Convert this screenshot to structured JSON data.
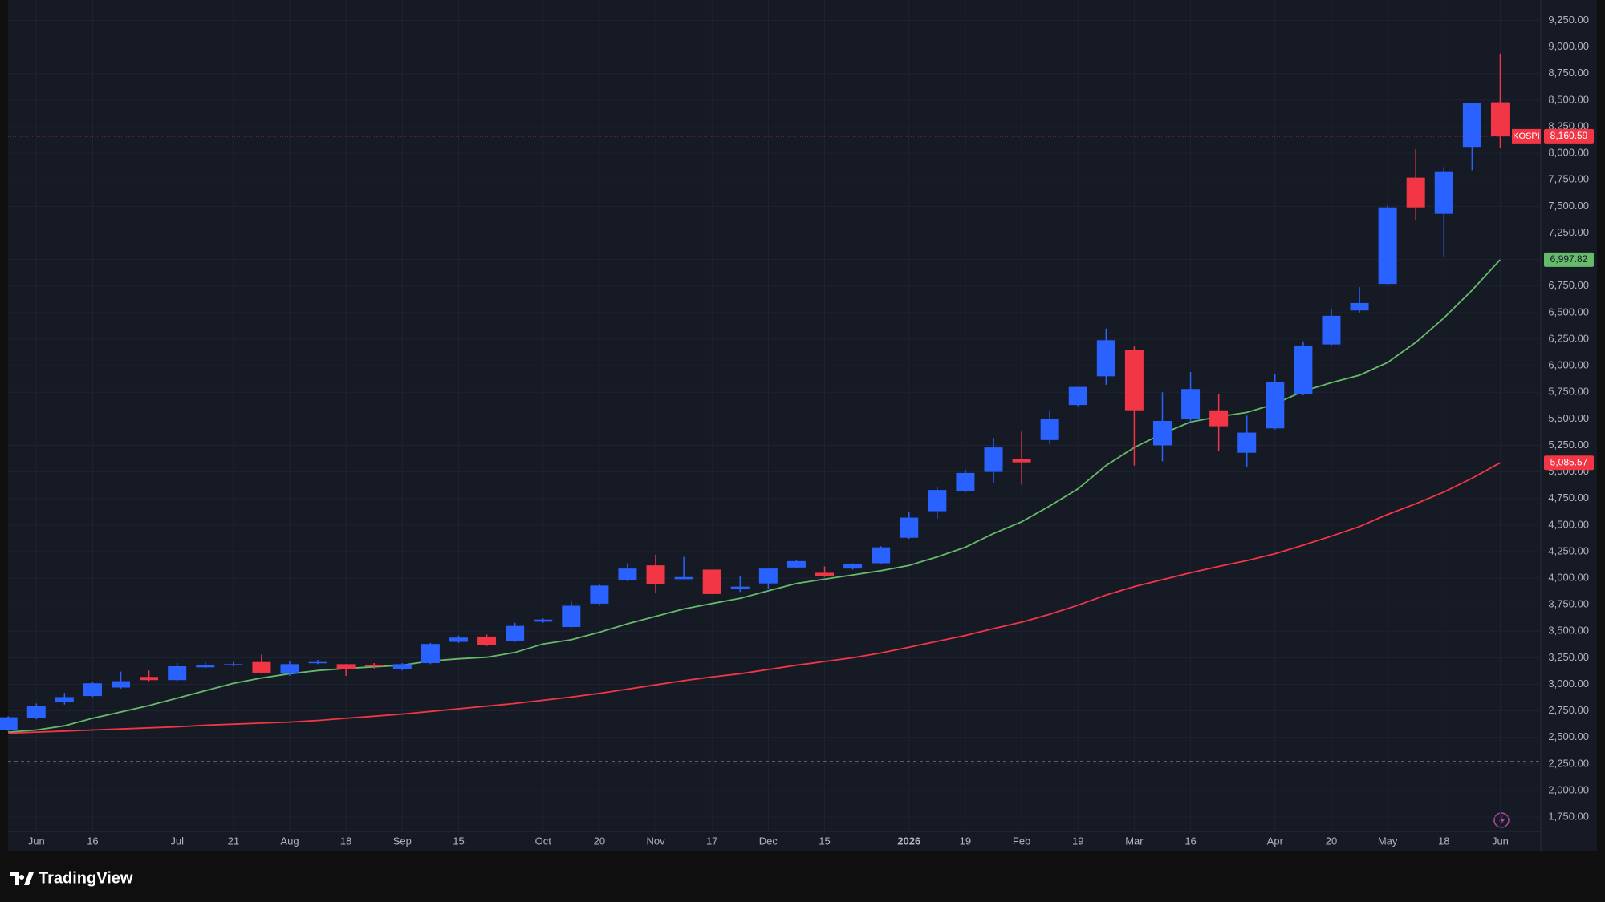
{
  "chart_data": {
    "type": "candlestick",
    "symbol": "KOSPI",
    "categories": [
      null,
      "Jun",
      null,
      "16",
      null,
      null,
      "Jul",
      null,
      "21",
      null,
      "Aug",
      null,
      "18",
      null,
      "Sep",
      null,
      "15",
      null,
      null,
      "Oct",
      null,
      "20",
      null,
      "Nov",
      null,
      "17",
      null,
      "Dec",
      null,
      "15",
      null,
      null,
      "2026",
      null,
      "19",
      null,
      "Feb",
      null,
      "19",
      null,
      "Mar",
      null,
      "16",
      null,
      null,
      "Apr",
      null,
      "20",
      null,
      "May",
      null,
      "18",
      null,
      "Jun"
    ],
    "open": [
      2570,
      2680,
      2830,
      2890,
      2970,
      3070,
      3040,
      3160,
      3180,
      3210,
      3100,
      3200,
      3190,
      3180,
      3140,
      3200,
      3400,
      3450,
      3410,
      3590,
      3540,
      3760,
      3980,
      4120,
      3990,
      4080,
      3900,
      3950,
      4100,
      4050,
      4090,
      4140,
      4380,
      4630,
      4820,
      5000,
      5120,
      5300,
      5630,
      5900,
      6150,
      5250,
      5500,
      5580,
      5180,
      5410,
      5730,
      6200,
      6520,
      6770,
      7770,
      7430,
      8060,
      8480
    ],
    "high": [
      2700,
      2820,
      2920,
      3020,
      3120,
      3130,
      3200,
      3210,
      3210,
      3280,
      3220,
      3230,
      3190,
      3200,
      3200,
      3390,
      3460,
      3470,
      3580,
      3620,
      3790,
      3940,
      4140,
      4220,
      4200,
      4080,
      4020,
      4100,
      4170,
      4110,
      4140,
      4300,
      4620,
      4860,
      5020,
      5320,
      5380,
      5580,
      5800,
      6350,
      6180,
      5750,
      5940,
      5730,
      5530,
      5920,
      6230,
      6530,
      6740,
      7510,
      8040,
      7870,
      8470,
      8940
    ],
    "low": [
      2560,
      2670,
      2810,
      2880,
      2960,
      3030,
      3030,
      3150,
      3170,
      3100,
      3080,
      3190,
      3080,
      3150,
      3130,
      3190,
      3390,
      3360,
      3400,
      3580,
      3530,
      3740,
      3970,
      3860,
      3990,
      3850,
      3870,
      3900,
      4090,
      4010,
      4080,
      4130,
      4370,
      4560,
      4810,
      4900,
      4880,
      5260,
      5620,
      5820,
      5060,
      5100,
      5470,
      5200,
      5050,
      5400,
      5720,
      6190,
      6500,
      6760,
      7370,
      7030,
      7840,
      8050
    ],
    "close": [
      2690,
      2800,
      2880,
      3010,
      3030,
      3040,
      3170,
      3180,
      3190,
      3110,
      3190,
      3210,
      3140,
      3170,
      3190,
      3380,
      3440,
      3370,
      3550,
      3610,
      3740,
      3930,
      4090,
      3940,
      4010,
      3850,
      3920,
      4090,
      4160,
      4020,
      4130,
      4290,
      4570,
      4830,
      4990,
      5230,
      5090,
      5500,
      5800,
      6240,
      5580,
      5480,
      5780,
      5430,
      5370,
      5850,
      6190,
      6470,
      6590,
      7490,
      7490,
      7830,
      8470,
      8160.59
    ],
    "last_close_label": "8,160.59",
    "up_color": "#2962ff",
    "down_color": "#f23645",
    "moving_averages": [
      {
        "color": "#66bb6a",
        "last_label": "6,997.82",
        "values": [
          2550,
          2570,
          2610,
          2680,
          2740,
          2800,
          2870,
          2940,
          3010,
          3060,
          3100,
          3130,
          3150,
          3165,
          3180,
          3220,
          3240,
          3255,
          3300,
          3380,
          3420,
          3490,
          3570,
          3640,
          3710,
          3760,
          3810,
          3880,
          3950,
          3990,
          4030,
          4070,
          4120,
          4200,
          4290,
          4420,
          4530,
          4680,
          4840,
          5060,
          5230,
          5360,
          5470,
          5520,
          5560,
          5640,
          5760,
          5840,
          5910,
          6030,
          6220,
          6450,
          6710,
          6997.82
        ]
      },
      {
        "color": "#f23645",
        "last_label": "5,085.57",
        "values": [
          2540,
          2550,
          2560,
          2570,
          2580,
          2590,
          2600,
          2615,
          2625,
          2635,
          2645,
          2660,
          2680,
          2700,
          2720,
          2745,
          2770,
          2795,
          2820,
          2850,
          2880,
          2915,
          2955,
          2995,
          3035,
          3070,
          3100,
          3140,
          3180,
          3215,
          3250,
          3295,
          3350,
          3405,
          3460,
          3525,
          3585,
          3660,
          3745,
          3840,
          3920,
          3985,
          4050,
          4110,
          4165,
          4230,
          4310,
          4395,
          4485,
          4600,
          4700,
          4810,
          4940,
          5085.57
        ]
      }
    ],
    "reference_line": 2270,
    "ylim": [
      1615,
      9443
    ],
    "yticks": [
      {
        "value": 1750,
        "label": "1,750.00"
      },
      {
        "value": 2000,
        "label": "2,000.00"
      },
      {
        "value": 2250,
        "label": "2,250.00"
      },
      {
        "value": 2500,
        "label": "2,500.00"
      },
      {
        "value": 2750,
        "label": "2,750.00"
      },
      {
        "value": 3000,
        "label": "3,000.00"
      },
      {
        "value": 3250,
        "label": "3,250.00"
      },
      {
        "value": 3500,
        "label": "3,500.00"
      },
      {
        "value": 3750,
        "label": "3,750.00"
      },
      {
        "value": 4000,
        "label": "4,000.00"
      },
      {
        "value": 4250,
        "label": "4,250.00"
      },
      {
        "value": 4500,
        "label": "4,500.00"
      },
      {
        "value": 4750,
        "label": "4,750.00"
      },
      {
        "value": 5000,
        "label": "5,000.00"
      },
      {
        "value": 5250,
        "label": "5,250.00"
      },
      {
        "value": 5500,
        "label": "5,500.00"
      },
      {
        "value": 5750,
        "label": "5,750.00"
      },
      {
        "value": 6000,
        "label": "6,000.00"
      },
      {
        "value": 6250,
        "label": "6,250.00"
      },
      {
        "value": 6500,
        "label": "6,500.00"
      },
      {
        "value": 6750,
        "label": "6,750.00"
      },
      {
        "value": 7000,
        "label": "7,000.00"
      },
      {
        "value": 7250,
        "label": "7,250.00"
      },
      {
        "value": 7500,
        "label": "7,500.00"
      },
      {
        "value": 7750,
        "label": "7,750.00"
      },
      {
        "value": 8000,
        "label": "8,000.00"
      },
      {
        "value": 8250,
        "label": "8,250.00"
      },
      {
        "value": 8500,
        "label": "8,500.00"
      },
      {
        "value": 8750,
        "label": "8,750.00"
      },
      {
        "value": 9000,
        "label": "9,000.00"
      },
      {
        "value": 9250,
        "label": "9,250.00"
      }
    ],
    "grid": true
  },
  "branding": "TradingView"
}
